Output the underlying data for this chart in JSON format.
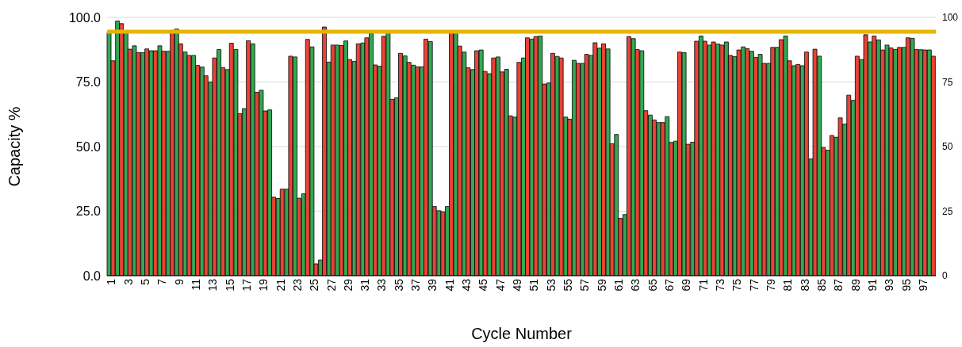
{
  "chart_data": {
    "type": "bar",
    "xlabel": "Cycle Number",
    "ylabel": "Capacity %",
    "categories": [
      "1",
      null,
      "3",
      null,
      "5",
      null,
      "7",
      null,
      "9",
      null,
      "11",
      null,
      "13",
      null,
      "15",
      null,
      "17",
      null,
      "19",
      null,
      "21",
      null,
      "23",
      null,
      "25",
      null,
      "27",
      null,
      "29",
      null,
      "31",
      null,
      "33",
      null,
      "35",
      null,
      "37",
      null,
      "39",
      null,
      "41",
      null,
      "43",
      null,
      "45",
      null,
      "47",
      null,
      "49",
      null,
      "51",
      null,
      "53",
      null,
      "55",
      null,
      "57",
      null,
      "59",
      null,
      "61",
      null,
      "63",
      null,
      "65",
      null,
      "67",
      null,
      "69",
      null,
      "71",
      null,
      "73",
      null,
      "75",
      null,
      "77",
      null,
      "79",
      null,
      "81",
      null,
      "83",
      null,
      "85",
      null,
      "87",
      null,
      "89",
      null,
      "91",
      null,
      "93",
      null,
      "95",
      null,
      "97",
      null
    ],
    "series": [
      {
        "color": "#34a853",
        "values": [
          94.2,
          98.6,
          94,
          89,
          86.4,
          87.1,
          89,
          86.9,
          95.5,
          86.6,
          85.3,
          80.8,
          75,
          87.6,
          79.8,
          87.6,
          64.7,
          89.8,
          71.8,
          64.2,
          29.9,
          33.5,
          84.7,
          31.7,
          88.6,
          6.1,
          82.7,
          89.3,
          90.9,
          83,
          90.1,
          93.8,
          81.1,
          94.2,
          68.9,
          85.1,
          81.5,
          80.9,
          90.7,
          25.2,
          26.8,
          94.1,
          86.6,
          79.8,
          87.4,
          78.2,
          84.7,
          79.9,
          61.4,
          84.3,
          91.6,
          92.8,
          74.6,
          84.9,
          61.4,
          83.4,
          82.2,
          85.3,
          88.1,
          87.8,
          54.7,
          23.7,
          91.8,
          87.1,
          62.2,
          59.3,
          61.6,
          52.1,
          86.4,
          51.7,
          92.8,
          89.3,
          89.7,
          90.5,
          84.8,
          88.6,
          86.9,
          85.7,
          82.2,
          88.4,
          92.8,
          81.3,
          81.3,
          45.2,
          85,
          48.6,
          53.6,
          58.7,
          67.9,
          83.7,
          90.5,
          91.3,
          89.3,
          87.6,
          88.4,
          91.9,
          87.5,
          87.4
        ]
      },
      {
        "color": "#ea4335",
        "values": [
          83.2,
          97.6,
          87.7,
          86.4,
          87.8,
          87.1,
          86.9,
          95,
          89.8,
          85.3,
          81.4,
          77.4,
          84.3,
          80.6,
          90,
          62.7,
          91,
          71,
          63.8,
          30.4,
          33.5,
          85,
          30,
          91.5,
          4.6,
          96.3,
          89.3,
          89.1,
          83.7,
          89.8,
          92.1,
          81.6,
          92.7,
          68.3,
          86.1,
          82.6,
          80.9,
          91.6,
          26.8,
          24.7,
          94.1,
          88.9,
          80.5,
          87.1,
          79.1,
          84.3,
          78.9,
          61.9,
          82.6,
          92.1,
          92.6,
          74.2,
          86.1,
          84.3,
          60.6,
          82.2,
          85.7,
          90.2,
          89.8,
          51.1,
          22.2,
          92.6,
          87.6,
          63.9,
          60.3,
          59.3,
          51.6,
          86.6,
          50.9,
          90.8,
          90.8,
          90.5,
          89.3,
          85.3,
          87.4,
          87.9,
          84.5,
          82.2,
          88.4,
          91.4,
          83.2,
          81.8,
          86.6,
          87.7,
          49.6,
          54.3,
          61.1,
          69.9,
          85,
          93.3,
          92.8,
          87.4,
          88.2,
          88.4,
          92.1,
          87.6,
          87.4,
          85
        ]
      }
    ],
    "ylim": [
      0,
      100
    ],
    "yticks": [
      {
        "value": 0,
        "label": "0.0"
      },
      {
        "value": 25,
        "label": "25.0"
      },
      {
        "value": 50,
        "label": "50.0"
      },
      {
        "value": 75,
        "label": "75.0"
      },
      {
        "value": 100,
        "label": "100.0"
      }
    ],
    "y2lim": [
      0,
      100
    ],
    "y2ticks": [
      0,
      25,
      50,
      75,
      100
    ],
    "ref_lines": [
      {
        "axis": "y",
        "value": 94.5,
        "color": "#e8b400"
      }
    ],
    "grid": "y"
  }
}
